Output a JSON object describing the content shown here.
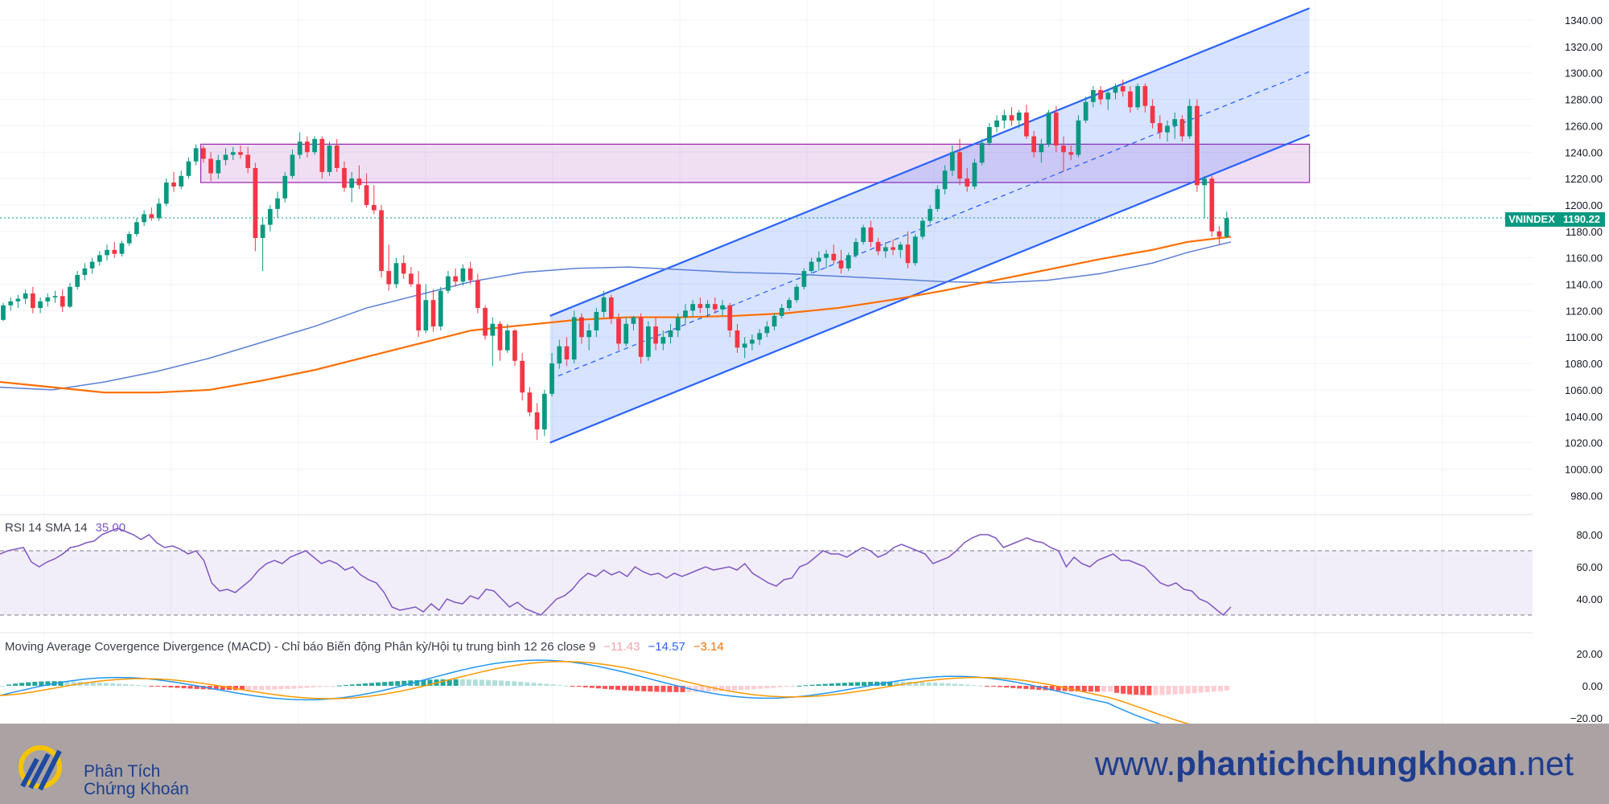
{
  "symbol": {
    "ticker": "VNINDEX",
    "last_price": "1190.22",
    "last_value": 1190.22
  },
  "price_axis": {
    "labels": [
      "1340.00",
      "1320.00",
      "1300.00",
      "1280.00",
      "1260.00",
      "1240.00",
      "1220.00",
      "1200.00",
      "1180.00",
      "1160.00",
      "1140.00",
      "1120.00",
      "1100.00",
      "1080.00",
      "1060.00",
      "1040.00",
      "1020.00",
      "1000.00",
      "980.00"
    ]
  },
  "rsi": {
    "label": "RSI 14 SMA 14",
    "value": "35.00",
    "axis_labels": [
      "80.00",
      "60.00",
      "40.00"
    ],
    "upper_band": 70,
    "lower_band": 30
  },
  "macd": {
    "label": "Moving Average Covergence Divergence (MACD) - Chỉ báo Biến động Phân kỳ/Hội tụ trung bình 12 26 close 9",
    "histogram_value": "−11.43",
    "macd_value": "−14.57",
    "signal_value": "−3.14",
    "axis_labels": [
      "20.00",
      "0.00",
      "−20.00"
    ]
  },
  "footer": {
    "brand_line1": "Phân Tích",
    "brand_line2": "Chứng Khoán",
    "site_prefix": "www.",
    "site_name": "phantichchungkhoan",
    "site_suffix": ".net"
  },
  "colors": {
    "up": "#089981",
    "down": "#f23645",
    "ma_long": "#ff6d00",
    "ma_mid": "#5b7fd6",
    "channel": "#2962ff",
    "zone": "#9c27b0",
    "rsi": "#7e57c2",
    "footer_bg": "#aba2a3",
    "brand": "#1e3d8f"
  },
  "chart_data": {
    "type": "candlestick",
    "y_range": [
      970,
      1350
    ],
    "candles": [
      [
        1113,
        1126,
        1112,
        1124
      ],
      [
        1124,
        1130,
        1120,
        1127
      ],
      [
        1127,
        1132,
        1122,
        1129
      ],
      [
        1129,
        1136,
        1125,
        1133
      ],
      [
        1133,
        1138,
        1118,
        1122
      ],
      [
        1122,
        1130,
        1118,
        1127
      ],
      [
        1127,
        1133,
        1123,
        1130
      ],
      [
        1130,
        1135,
        1126,
        1131
      ],
      [
        1131,
        1136,
        1119,
        1123
      ],
      [
        1123,
        1141,
        1122,
        1138
      ],
      [
        1138,
        1150,
        1136,
        1147
      ],
      [
        1147,
        1156,
        1143,
        1152
      ],
      [
        1152,
        1160,
        1148,
        1157
      ],
      [
        1157,
        1165,
        1154,
        1162
      ],
      [
        1162,
        1170,
        1158,
        1166
      ],
      [
        1166,
        1172,
        1160,
        1163
      ],
      [
        1163,
        1173,
        1161,
        1171
      ],
      [
        1171,
        1180,
        1169,
        1178
      ],
      [
        1178,
        1190,
        1176,
        1187
      ],
      [
        1187,
        1196,
        1184,
        1193
      ],
      [
        1193,
        1198,
        1188,
        1190
      ],
      [
        1190,
        1205,
        1188,
        1201
      ],
      [
        1201,
        1220,
        1199,
        1217
      ],
      [
        1217,
        1225,
        1210,
        1214
      ],
      [
        1214,
        1226,
        1212,
        1222
      ],
      [
        1222,
        1236,
        1220,
        1233
      ],
      [
        1233,
        1246,
        1230,
        1243
      ],
      [
        1243,
        1245,
        1232,
        1235
      ],
      [
        1235,
        1240,
        1218,
        1224
      ],
      [
        1224,
        1238,
        1220,
        1234
      ],
      [
        1234,
        1243,
        1230,
        1238
      ],
      [
        1238,
        1244,
        1234,
        1240
      ],
      [
        1240,
        1245,
        1235,
        1238
      ],
      [
        1238,
        1244,
        1224,
        1228
      ],
      [
        1228,
        1232,
        1165,
        1175
      ],
      [
        1175,
        1190,
        1150,
        1185
      ],
      [
        1185,
        1200,
        1180,
        1197
      ],
      [
        1197,
        1210,
        1190,
        1205
      ],
      [
        1205,
        1225,
        1202,
        1222
      ],
      [
        1222,
        1242,
        1220,
        1238
      ],
      [
        1238,
        1255,
        1235,
        1248
      ],
      [
        1248,
        1252,
        1236,
        1240
      ],
      [
        1240,
        1252,
        1238,
        1250
      ],
      [
        1250,
        1252,
        1220,
        1225
      ],
      [
        1225,
        1248,
        1222,
        1245
      ],
      [
        1245,
        1250,
        1225,
        1228
      ],
      [
        1228,
        1233,
        1210,
        1213
      ],
      [
        1213,
        1225,
        1202,
        1220
      ],
      [
        1220,
        1230,
        1212,
        1215
      ],
      [
        1215,
        1224,
        1198,
        1200
      ],
      [
        1200,
        1215,
        1193,
        1196
      ],
      [
        1196,
        1200,
        1145,
        1150
      ],
      [
        1150,
        1170,
        1135,
        1140
      ],
      [
        1140,
        1160,
        1137,
        1156
      ],
      [
        1156,
        1162,
        1144,
        1148
      ],
      [
        1148,
        1153,
        1138,
        1140
      ],
      [
        1140,
        1150,
        1100,
        1105
      ],
      [
        1105,
        1140,
        1103,
        1128
      ],
      [
        1128,
        1136,
        1104,
        1108
      ],
      [
        1108,
        1138,
        1105,
        1135
      ],
      [
        1135,
        1150,
        1133,
        1146
      ],
      [
        1146,
        1152,
        1138,
        1142
      ],
      [
        1142,
        1155,
        1139,
        1152
      ],
      [
        1152,
        1157,
        1140,
        1143
      ],
      [
        1143,
        1148,
        1118,
        1122
      ],
      [
        1122,
        1124,
        1098,
        1101
      ],
      [
        1101,
        1115,
        1078,
        1110
      ],
      [
        1110,
        1112,
        1082,
        1090
      ],
      [
        1090,
        1110,
        1088,
        1105
      ],
      [
        1105,
        1106,
        1078,
        1082
      ],
      [
        1082,
        1088,
        1052,
        1058
      ],
      [
        1058,
        1062,
        1040,
        1043
      ],
      [
        1043,
        1050,
        1022,
        1030
      ],
      [
        1030,
        1060,
        1025,
        1057
      ],
      [
        1057,
        1088,
        1055,
        1080
      ],
      [
        1080,
        1098,
        1076,
        1093
      ],
      [
        1093,
        1100,
        1078,
        1083
      ],
      [
        1083,
        1120,
        1080,
        1115
      ],
      [
        1115,
        1118,
        1095,
        1100
      ],
      [
        1100,
        1110,
        1090,
        1105
      ],
      [
        1105,
        1122,
        1100,
        1119
      ],
      [
        1119,
        1135,
        1115,
        1130
      ],
      [
        1130,
        1132,
        1110,
        1114
      ],
      [
        1114,
        1118,
        1090,
        1095
      ],
      [
        1095,
        1115,
        1093,
        1110
      ],
      [
        1110,
        1116,
        1105,
        1115
      ],
      [
        1115,
        1118,
        1080,
        1085
      ],
      [
        1085,
        1112,
        1082,
        1108
      ],
      [
        1108,
        1115,
        1090,
        1095
      ],
      [
        1095,
        1105,
        1090,
        1100
      ],
      [
        1100,
        1110,
        1095,
        1105
      ],
      [
        1105,
        1118,
        1100,
        1115
      ],
      [
        1115,
        1125,
        1110,
        1120
      ],
      [
        1120,
        1128,
        1115,
        1125
      ],
      [
        1125,
        1130,
        1118,
        1122
      ],
      [
        1122,
        1128,
        1115,
        1125
      ],
      [
        1125,
        1130,
        1118,
        1121
      ],
      [
        1121,
        1128,
        1116,
        1124
      ],
      [
        1124,
        1126,
        1100,
        1105
      ],
      [
        1105,
        1110,
        1088,
        1092
      ],
      [
        1092,
        1100,
        1084,
        1095
      ],
      [
        1095,
        1102,
        1090,
        1098
      ],
      [
        1098,
        1106,
        1094,
        1103
      ],
      [
        1103,
        1112,
        1100,
        1108
      ],
      [
        1108,
        1118,
        1105,
        1116
      ],
      [
        1116,
        1125,
        1114,
        1122
      ],
      [
        1122,
        1130,
        1120,
        1128
      ],
      [
        1128,
        1140,
        1126,
        1138
      ],
      [
        1138,
        1152,
        1136,
        1150
      ],
      [
        1150,
        1160,
        1148,
        1157
      ],
      [
        1157,
        1165,
        1150,
        1160
      ],
      [
        1160,
        1166,
        1152,
        1163
      ],
      [
        1163,
        1170,
        1155,
        1158
      ],
      [
        1158,
        1166,
        1148,
        1152
      ],
      [
        1152,
        1164,
        1150,
        1162
      ],
      [
        1162,
        1175,
        1160,
        1172
      ],
      [
        1172,
        1185,
        1170,
        1183
      ],
      [
        1183,
        1188,
        1168,
        1172
      ],
      [
        1172,
        1175,
        1162,
        1165
      ],
      [
        1165,
        1172,
        1160,
        1168
      ],
      [
        1168,
        1174,
        1162,
        1166
      ],
      [
        1166,
        1172,
        1160,
        1170
      ],
      [
        1170,
        1180,
        1152,
        1156
      ],
      [
        1156,
        1178,
        1154,
        1176
      ],
      [
        1176,
        1190,
        1174,
        1188
      ],
      [
        1188,
        1200,
        1186,
        1197
      ],
      [
        1197,
        1215,
        1195,
        1212
      ],
      [
        1212,
        1230,
        1208,
        1226
      ],
      [
        1226,
        1245,
        1222,
        1240
      ],
      [
        1240,
        1250,
        1215,
        1220
      ],
      [
        1220,
        1228,
        1210,
        1214
      ],
      [
        1214,
        1235,
        1212,
        1232
      ],
      [
        1232,
        1250,
        1230,
        1247
      ],
      [
        1247,
        1262,
        1245,
        1259
      ],
      [
        1259,
        1268,
        1255,
        1264
      ],
      [
        1264,
        1272,
        1258,
        1268
      ],
      [
        1268,
        1274,
        1260,
        1264
      ],
      [
        1264,
        1272,
        1258,
        1270
      ],
      [
        1270,
        1276,
        1250,
        1252
      ],
      [
        1252,
        1256,
        1236,
        1240
      ],
      [
        1240,
        1250,
        1232,
        1246
      ],
      [
        1246,
        1272,
        1244,
        1270
      ],
      [
        1270,
        1275,
        1240,
        1245
      ],
      [
        1245,
        1252,
        1225,
        1240
      ],
      [
        1240,
        1245,
        1234,
        1238
      ],
      [
        1238,
        1268,
        1236,
        1264
      ],
      [
        1264,
        1282,
        1262,
        1278
      ],
      [
        1278,
        1290,
        1274,
        1287
      ],
      [
        1287,
        1290,
        1276,
        1280
      ],
      [
        1280,
        1288,
        1272,
        1285
      ],
      [
        1285,
        1292,
        1280,
        1290
      ],
      [
        1290,
        1295,
        1282,
        1286
      ],
      [
        1286,
        1290,
        1270,
        1274
      ],
      [
        1274,
        1292,
        1272,
        1290
      ],
      [
        1290,
        1292,
        1270,
        1275
      ],
      [
        1275,
        1280,
        1258,
        1262
      ],
      [
        1262,
        1268,
        1250,
        1255
      ],
      [
        1255,
        1264,
        1248,
        1260
      ],
      [
        1260,
        1270,
        1250,
        1265
      ],
      [
        1265,
        1268,
        1248,
        1252
      ],
      [
        1252,
        1280,
        1250,
        1275
      ],
      [
        1275,
        1280,
        1210,
        1215
      ],
      [
        1215,
        1222,
        1190,
        1220
      ],
      [
        1220,
        1222,
        1176,
        1180
      ],
      [
        1180,
        1184,
        1170,
        1176
      ],
      [
        1176,
        1195,
        1175,
        1190
      ]
    ],
    "moving_averages": [
      {
        "points": [
          [
            0,
            1062
          ],
          [
            30,
            1060
          ],
          [
            60,
            1066
          ],
          [
            90,
            1074
          ],
          [
            120,
            1084
          ],
          [
            150,
            1096
          ],
          [
            180,
            1108
          ],
          [
            210,
            1122
          ],
          [
            240,
            1132
          ],
          [
            270,
            1142
          ],
          [
            300,
            1149
          ],
          [
            330,
            1152
          ],
          [
            360,
            1153
          ],
          [
            390,
            1151
          ],
          [
            420,
            1149
          ],
          [
            450,
            1148
          ],
          [
            480,
            1146
          ],
          [
            510,
            1144
          ],
          [
            540,
            1142
          ],
          [
            570,
            1141
          ],
          [
            600,
            1143
          ],
          [
            630,
            1148
          ],
          [
            660,
            1156
          ],
          [
            680,
            1164
          ],
          [
            705,
            1172
          ]
        ]
      },
      {
        "points": [
          [
            0,
            1066
          ],
          [
            30,
            1062
          ],
          [
            60,
            1058
          ],
          [
            90,
            1058
          ],
          [
            120,
            1060
          ],
          [
            150,
            1067
          ],
          [
            180,
            1075
          ],
          [
            210,
            1085
          ],
          [
            240,
            1095
          ],
          [
            270,
            1105
          ],
          [
            300,
            1109
          ],
          [
            330,
            1113
          ],
          [
            360,
            1115
          ],
          [
            390,
            1115
          ],
          [
            420,
            1116
          ],
          [
            450,
            1118
          ],
          [
            480,
            1122
          ],
          [
            510,
            1128
          ],
          [
            540,
            1135
          ],
          [
            570,
            1143
          ],
          [
            600,
            1151
          ],
          [
            630,
            1159
          ],
          [
            660,
            1166
          ],
          [
            680,
            1172
          ],
          [
            705,
            1176
          ]
        ]
      }
    ],
    "channel": {
      "lower": [
        [
          315,
          1020
        ],
        [
          750,
          1253
        ]
      ],
      "upper": [
        [
          315,
          1116
        ],
        [
          750,
          1349
        ]
      ],
      "middle": [
        [
          315,
          1068
        ],
        [
          750,
          1301
        ]
      ]
    },
    "resistance_zone": {
      "x": [
        115,
        750
      ],
      "y": [
        1217,
        1246
      ]
    },
    "rsi_values": [
      68,
      70,
      71,
      72,
      63,
      60,
      63,
      65,
      68,
      72,
      73,
      75,
      76,
      80,
      82,
      84,
      82,
      80,
      77,
      80,
      75,
      72,
      73,
      71,
      68,
      70,
      64,
      50,
      45,
      46,
      44,
      48,
      52,
      58,
      62,
      64,
      62,
      66,
      68,
      70,
      66,
      62,
      64,
      62,
      58,
      60,
      55,
      52,
      50,
      44,
      35,
      33,
      34,
      35,
      32,
      37,
      33,
      40,
      38,
      37,
      42,
      40,
      46,
      45,
      40,
      35,
      38,
      34,
      32,
      30,
      35,
      40,
      42,
      46,
      52,
      56,
      54,
      58,
      55,
      57,
      54,
      60,
      57,
      55,
      56,
      53,
      56,
      54,
      56,
      58,
      60,
      58,
      59,
      60,
      58,
      62,
      56,
      53,
      50,
      48,
      52,
      53,
      60,
      62,
      66,
      70,
      68,
      68,
      66,
      69,
      72,
      70,
      66,
      68,
      72,
      74,
      72,
      70,
      68,
      62,
      64,
      66,
      70,
      75,
      78,
      80,
      80,
      78,
      72,
      74,
      76,
      78,
      76,
      75,
      72,
      70,
      60,
      66,
      62,
      60,
      64,
      66,
      68,
      64,
      64,
      62,
      60,
      55,
      50,
      48,
      50,
      46,
      45,
      40,
      38,
      34,
      30,
      35
    ]
  }
}
